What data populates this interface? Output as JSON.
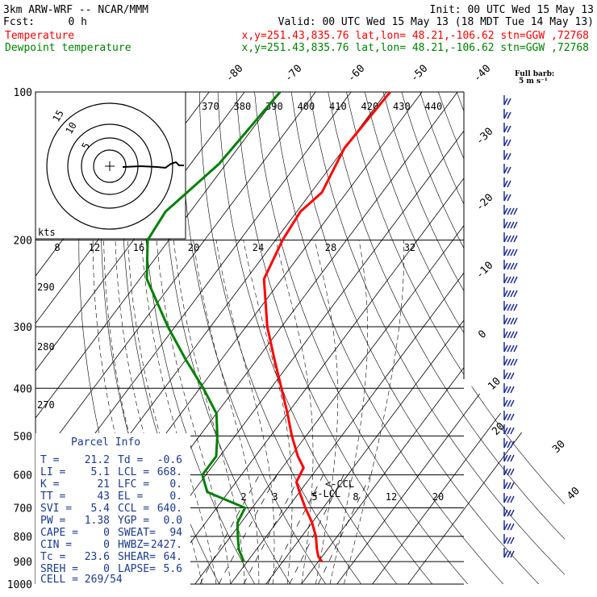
{
  "header": {
    "line1_left": "3km ARW-WRF -- NCAR/MMM",
    "line1_right": "Init: 00 UTC Wed 15 May 13",
    "fcst_label": "Fcst:",
    "fcst_value": "0 h",
    "valid": "Valid: 00 UTC Wed 15 May 13 (18 MDT Tue 14 May 13)",
    "legend": [
      {
        "label": "Temperature",
        "color": "#ff0000",
        "info": "x,y=251.43,835.76   lat,lon= 48.21,-106.62   stn=GGW ,72768"
      },
      {
        "label": "Dewpoint temperature",
        "color": "#008000",
        "info": "x,y=251.43,835.76   lat,lon= 48.21,-106.62   stn=GGW ,72768"
      }
    ]
  },
  "barb_note": {
    "line1": "Full barb:",
    "line2": "5 m s⁻¹"
  },
  "hodograph": {
    "ring_labels": [
      "15",
      "10",
      "5"
    ],
    "axis_label": "kts"
  },
  "parcel_info": {
    "title": "Parcel Info",
    "rows": [
      {
        "a": "T  =",
        "b": "21.2",
        "c": "Td =",
        "d": "-0.6"
      },
      {
        "a": "LI =",
        "b": "5.1",
        "c": "LCL =",
        "d": "668."
      },
      {
        "a": "K  =",
        "b": "21",
        "c": "LFC =",
        "d": "0."
      },
      {
        "a": "TT =",
        "b": "43",
        "c": "EL =",
        "d": "0."
      },
      {
        "a": "SVI =",
        "b": "5.4",
        "c": "CCL =",
        "d": "640."
      },
      {
        "a": "PW =",
        "b": "1.38",
        "c": "YGP =",
        "d": "0.0"
      },
      {
        "a": "CAPE =",
        "b": "0",
        "c": "SWEAT=",
        "d": "94"
      },
      {
        "a": "CIN =",
        "b": "0",
        "c": "HWBZ=",
        "d": "2427."
      },
      {
        "a": "Tc =",
        "b": "23.6",
        "c": "SHEAR=",
        "d": "64."
      },
      {
        "a": "SREH =",
        "b": "0",
        "c": "LAPSE=",
        "d": "5.6"
      }
    ],
    "cell": "CELL = 269/54"
  },
  "markers": {
    "ccl": "<-CCL",
    "lcl": "<-LCL",
    "five": "5"
  },
  "chart_data": {
    "type": "line",
    "ylabel_ticks": [
      100,
      200,
      300,
      400,
      500,
      600,
      700,
      800,
      900,
      1000
    ],
    "isotherm_labels_top": [
      -80,
      -70,
      -60,
      -50,
      -40
    ],
    "isotherm_labels_right": [
      -30,
      -20,
      -10,
      0,
      10,
      20,
      30,
      40
    ],
    "theta_labels_top": [
      370,
      380,
      390,
      400,
      410,
      420,
      430,
      440
    ],
    "theta_labels_left": [
      290,
      280,
      270
    ],
    "mixing_ratio_labels": [
      2,
      3,
      5,
      8,
      12,
      20
    ],
    "upper_mixing_labels": [
      8,
      12,
      16,
      20,
      24,
      28,
      32
    ],
    "series": [
      {
        "name": "Temperature",
        "color": "#ff0000",
        "points": [
          {
            "p": 100,
            "t": -59
          },
          {
            "p": 130,
            "t": -60
          },
          {
            "p": 160,
            "t": -57
          },
          {
            "p": 175,
            "t": -59
          },
          {
            "p": 200,
            "t": -58
          },
          {
            "p": 240,
            "t": -55
          },
          {
            "p": 300,
            "t": -44
          },
          {
            "p": 350,
            "t": -35
          },
          {
            "p": 400,
            "t": -27
          },
          {
            "p": 450,
            "t": -20
          },
          {
            "p": 500,
            "t": -14
          },
          {
            "p": 550,
            "t": -8
          },
          {
            "p": 580,
            "t": -4
          },
          {
            "p": 620,
            "t": -3
          },
          {
            "p": 650,
            "t": 0
          },
          {
            "p": 700,
            "t": 5
          },
          {
            "p": 750,
            "t": 10
          },
          {
            "p": 800,
            "t": 14
          },
          {
            "p": 850,
            "t": 17
          },
          {
            "p": 880,
            "t": 19
          },
          {
            "p": 900,
            "t": 21
          }
        ]
      },
      {
        "name": "Dewpoint temperature",
        "color": "#008000",
        "points": [
          {
            "p": 100,
            "t": -90
          },
          {
            "p": 140,
            "t": -92
          },
          {
            "p": 175,
            "t": -97
          },
          {
            "p": 200,
            "t": -96
          },
          {
            "p": 240,
            "t": -88
          },
          {
            "p": 300,
            "t": -72
          },
          {
            "p": 350,
            "t": -60
          },
          {
            "p": 400,
            "t": -49
          },
          {
            "p": 450,
            "t": -40
          },
          {
            "p": 500,
            "t": -35
          },
          {
            "p": 550,
            "t": -31
          },
          {
            "p": 600,
            "t": -31
          },
          {
            "p": 650,
            "t": -26
          },
          {
            "p": 700,
            "t": -12
          },
          {
            "p": 750,
            "t": -11
          },
          {
            "p": 800,
            "t": -8
          },
          {
            "p": 850,
            "t": -5
          },
          {
            "p": 900,
            "t": -1
          }
        ]
      }
    ]
  }
}
